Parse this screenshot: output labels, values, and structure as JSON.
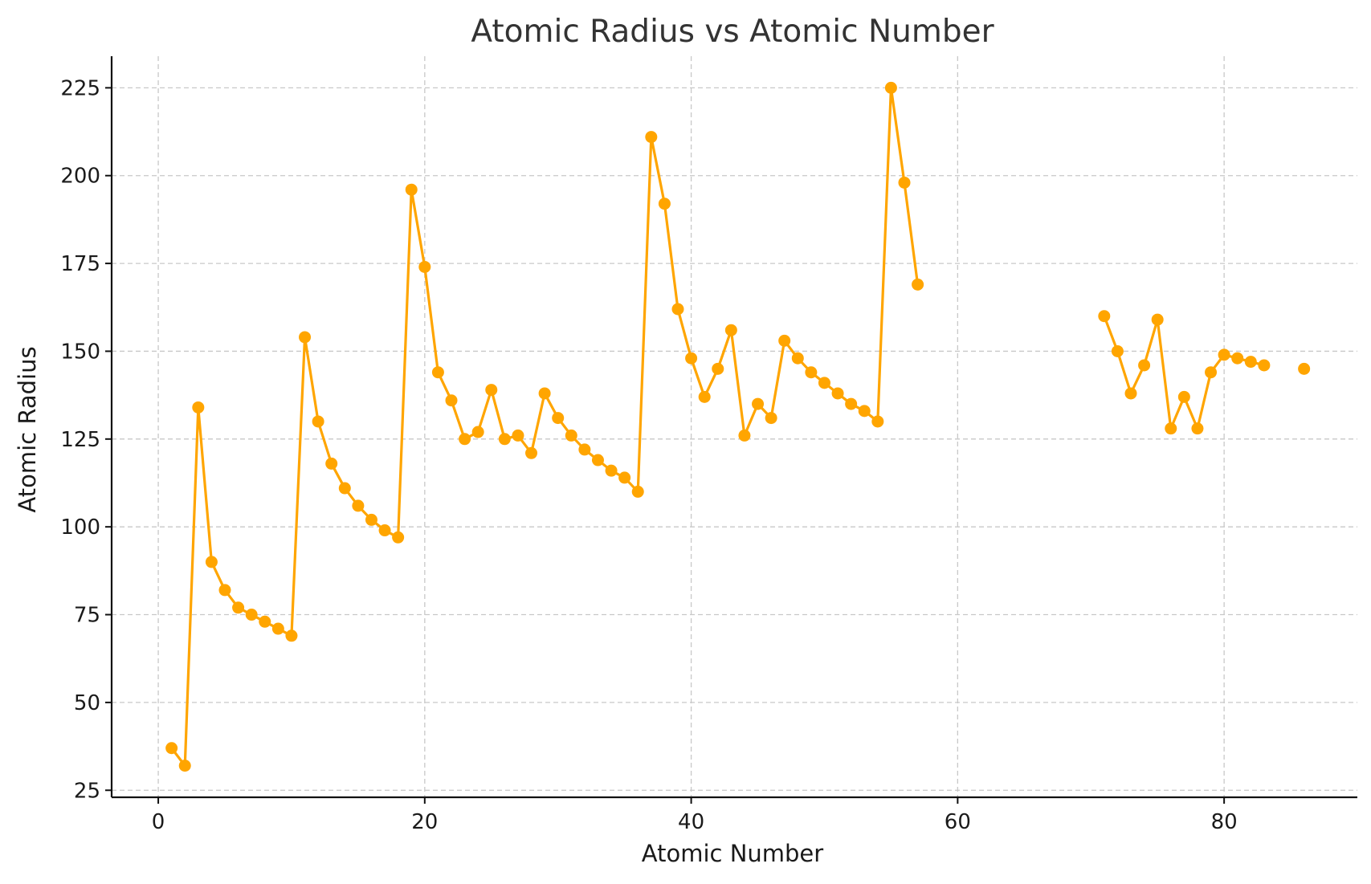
{
  "chart_data": {
    "type": "line",
    "title": "Atomic Radius vs Atomic Number",
    "xlabel": "Atomic Number",
    "ylabel": "Atomic Radius",
    "xlim": [
      -3.5,
      90
    ],
    "ylim": [
      23,
      234
    ],
    "xticks": [
      0,
      20,
      40,
      60,
      80
    ],
    "yticks": [
      25,
      50,
      75,
      100,
      125,
      150,
      175,
      200,
      225
    ],
    "grid": true,
    "line_color": "#FFA500",
    "series": [
      {
        "x": [
          1,
          2,
          3,
          4,
          5,
          6,
          7,
          8,
          9,
          10,
          11,
          12,
          13,
          14,
          15,
          16,
          17,
          18,
          19,
          20,
          21,
          22,
          23,
          24,
          25,
          26,
          27,
          28,
          29,
          30,
          31,
          32,
          33,
          34,
          35,
          36,
          37,
          38,
          39,
          40,
          41,
          42,
          43,
          44,
          45,
          46,
          47,
          48,
          49,
          50,
          51,
          52,
          53,
          54,
          55,
          56,
          57,
          58,
          59,
          60,
          61,
          62,
          63,
          64,
          65,
          66,
          67,
          68,
          69,
          70,
          71,
          72,
          73,
          74,
          75,
          76,
          77,
          78,
          79,
          80,
          81,
          82,
          83,
          84,
          85,
          86
        ],
        "y": [
          37,
          32,
          134,
          90,
          82,
          77,
          75,
          73,
          71,
          69,
          154,
          130,
          118,
          111,
          106,
          102,
          99,
          97,
          196,
          174,
          144,
          136,
          125,
          127,
          139,
          125,
          126,
          121,
          138,
          131,
          126,
          122,
          119,
          116,
          114,
          110,
          211,
          192,
          162,
          148,
          137,
          145,
          156,
          126,
          135,
          131,
          153,
          148,
          144,
          141,
          138,
          135,
          133,
          130,
          225,
          198,
          169,
          null,
          null,
          null,
          null,
          null,
          null,
          null,
          null,
          null,
          null,
          null,
          null,
          null,
          160,
          150,
          138,
          146,
          159,
          128,
          137,
          128,
          144,
          149,
          148,
          147,
          146,
          null,
          null,
          145
        ]
      }
    ]
  }
}
